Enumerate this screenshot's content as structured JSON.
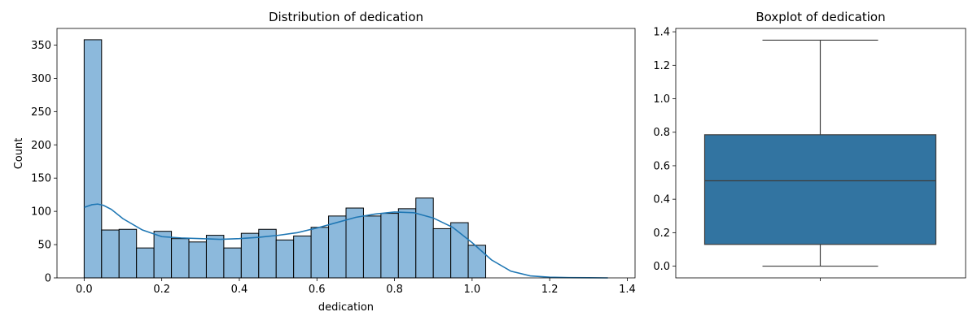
{
  "chart_data": [
    {
      "type": "bar",
      "title": "Distribution of dedication",
      "xlabel": "dedication",
      "ylabel": "Count",
      "xlim": [
        -0.07,
        1.42
      ],
      "ylim": [
        0,
        375
      ],
      "xticks": [
        0.0,
        0.2,
        0.4,
        0.6,
        0.8,
        1.0,
        1.2,
        1.4
      ],
      "xtick_labels": [
        "0.0",
        "0.2",
        "0.4",
        "0.6",
        "0.8",
        "1.0",
        "1.2",
        "1.4"
      ],
      "yticks": [
        0,
        50,
        100,
        150,
        200,
        250,
        300,
        350
      ],
      "ytick_labels": [
        "0",
        "50",
        "100",
        "150",
        "200",
        "250",
        "300",
        "350"
      ],
      "bin_edges": [
        0.0,
        0.045,
        0.09,
        0.135,
        0.18,
        0.225,
        0.27,
        0.315,
        0.36,
        0.405,
        0.45,
        0.495,
        0.54,
        0.585,
        0.63,
        0.675,
        0.72,
        0.765,
        0.81,
        0.855,
        0.9,
        0.945,
        0.99,
        1.035
      ],
      "counts": [
        358,
        72,
        73,
        45,
        70,
        59,
        54,
        64,
        45,
        67,
        73,
        57,
        63,
        76,
        93,
        105,
        93,
        97,
        104,
        120,
        74,
        83,
        49
      ],
      "bar_color": "#8cb9dc",
      "edge_color": "#000000",
      "kde": {
        "color": "#1f77b4",
        "x": [
          0.0,
          0.02,
          0.035,
          0.05,
          0.07,
          0.1,
          0.15,
          0.2,
          0.25,
          0.3,
          0.35,
          0.4,
          0.45,
          0.5,
          0.55,
          0.6,
          0.65,
          0.7,
          0.75,
          0.8,
          0.85,
          0.9,
          0.95,
          1.0,
          1.05,
          1.1,
          1.15,
          1.2,
          1.25,
          1.3,
          1.35
        ],
        "y": [
          106,
          110,
          111,
          109,
          103,
          89,
          72,
          62,
          60,
          59,
          58,
          59,
          61,
          64,
          68,
          75,
          83,
          91,
          96,
          99,
          98,
          90,
          76,
          53,
          27,
          10,
          3,
          1,
          0.4,
          0.2,
          0
        ]
      }
    },
    {
      "type": "box",
      "title": "Boxplot of dedication",
      "ylim": [
        -0.07,
        1.42
      ],
      "yticks": [
        0.0,
        0.2,
        0.4,
        0.6,
        0.8,
        1.0,
        1.2,
        1.4
      ],
      "ytick_labels": [
        "0.0",
        "0.2",
        "0.4",
        "0.6",
        "0.8",
        "1.0",
        "1.2",
        "1.4"
      ],
      "whisker_low": 0.0,
      "q1": 0.13,
      "median": 0.51,
      "q3": 0.785,
      "whisker_high": 1.35,
      "box_color": "#3274a1",
      "line_color": "#3d3d3d"
    }
  ]
}
